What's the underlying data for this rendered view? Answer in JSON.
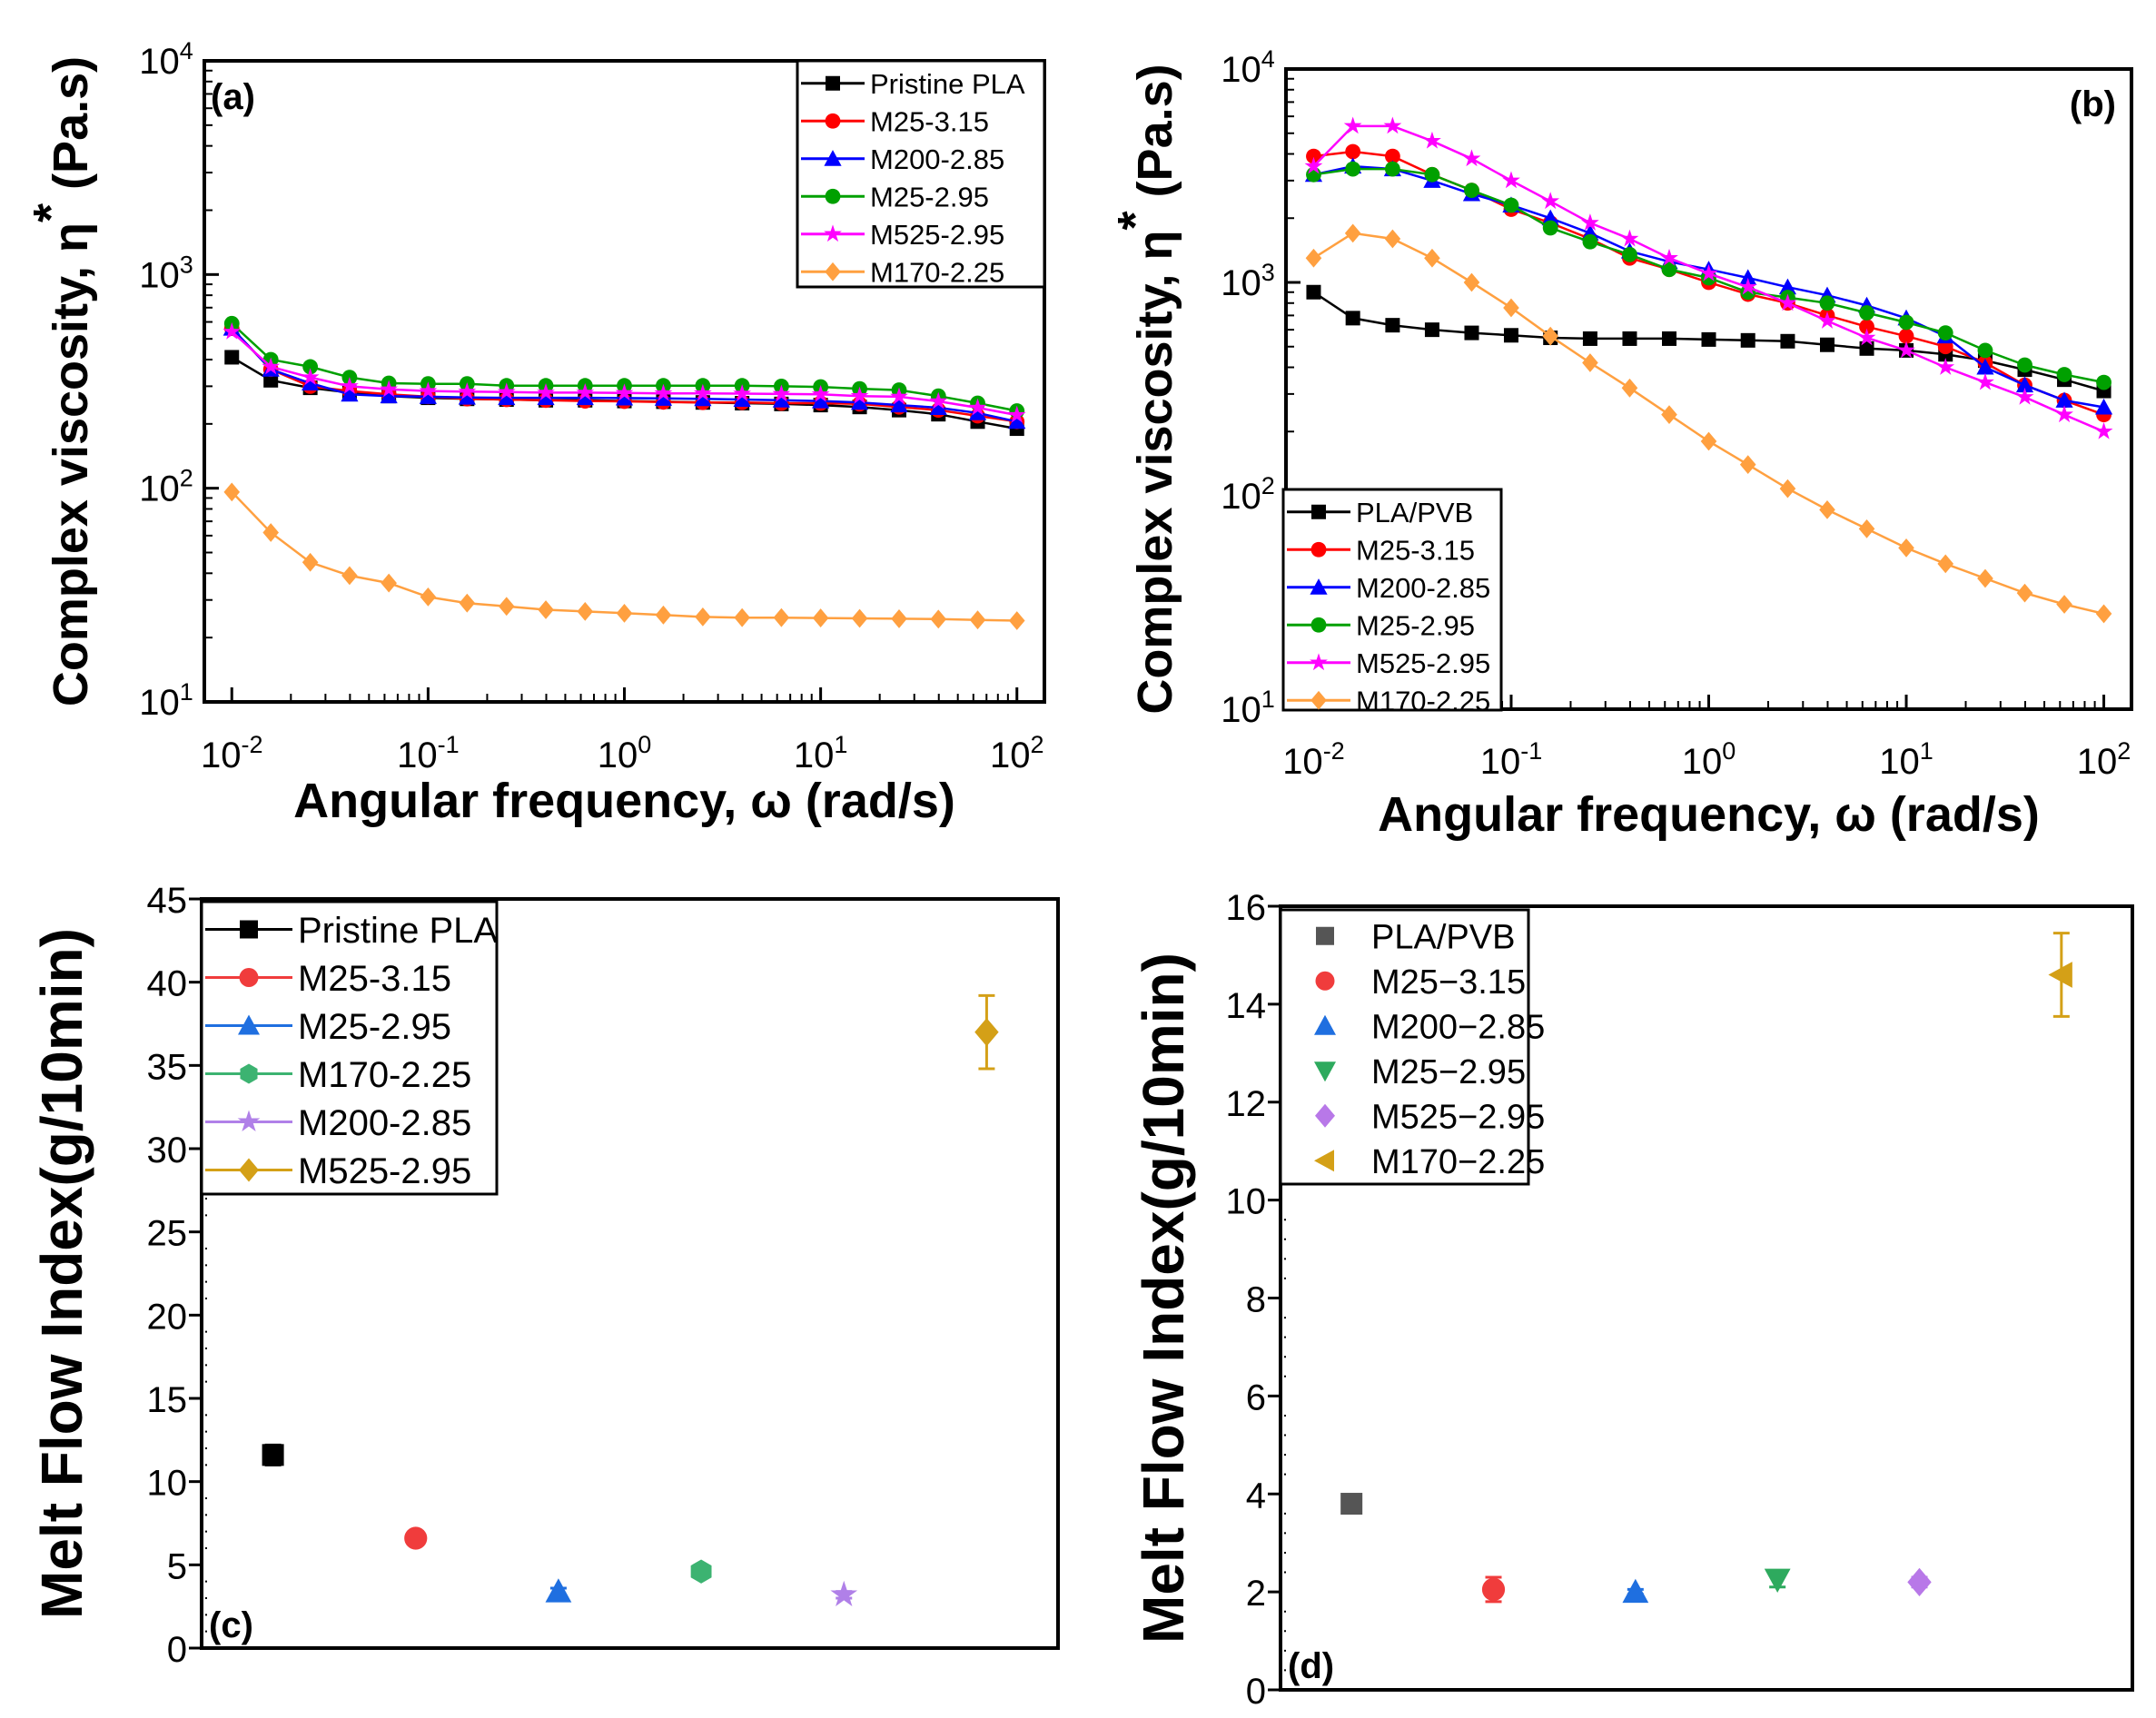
{
  "chart_data": [
    {
      "panel_label": "(a)",
      "type": "line",
      "xscale": "log",
      "yscale": "log",
      "xlabel": "Angular frequency, ω (rad/s)",
      "ylabel": "Complex viscosity, η* (Pa.s)",
      "xlim": [
        0.01,
        100
      ],
      "ylim": [
        10,
        10000
      ],
      "x_tick_exponents": [
        -2,
        -1,
        0,
        1,
        2
      ],
      "y_tick_exponents": [
        1,
        2,
        3,
        4
      ],
      "legend_position": "top-right",
      "x": [
        0.01,
        0.0158,
        0.0251,
        0.0398,
        0.0631,
        0.1,
        0.158,
        0.251,
        0.398,
        0.631,
        1,
        1.58,
        2.51,
        3.98,
        6.31,
        10,
        15.8,
        25.1,
        39.8,
        63.1,
        100
      ],
      "series": [
        {
          "name": "Pristine PLA",
          "color": "#000000",
          "marker": "square",
          "values": [
            410,
            320,
            295,
            280,
            270,
            265,
            262,
            260,
            258,
            258,
            256,
            254,
            252,
            250,
            248,
            245,
            240,
            232,
            222,
            205,
            190
          ]
        },
        {
          "name": "M25-3.15",
          "color": "#ff0000",
          "marker": "circle",
          "values": [
            560,
            360,
            300,
            285,
            275,
            268,
            262,
            260,
            258,
            256,
            255,
            253,
            252,
            252,
            250,
            250,
            248,
            240,
            232,
            218,
            205
          ]
        },
        {
          "name": "M200-2.85",
          "color": "#0000ff",
          "marker": "triangle-up",
          "values": [
            560,
            360,
            310,
            275,
            270,
            268,
            266,
            265,
            265,
            265,
            264,
            263,
            262,
            260,
            258,
            256,
            252,
            245,
            238,
            225,
            205
          ]
        },
        {
          "name": "M25-2.95",
          "color": "#00a000",
          "marker": "circle",
          "values": [
            590,
            400,
            370,
            330,
            310,
            308,
            308,
            302,
            302,
            302,
            302,
            302,
            302,
            302,
            300,
            298,
            292,
            288,
            270,
            250,
            230
          ]
        },
        {
          "name": "M525-2.95",
          "color": "#ff00ff",
          "marker": "star",
          "values": [
            540,
            370,
            330,
            300,
            290,
            285,
            283,
            282,
            280,
            280,
            279,
            278,
            278,
            277,
            276,
            275,
            270,
            268,
            255,
            238,
            220
          ]
        },
        {
          "name": "M170-2.25",
          "color": "#ffa040",
          "marker": "diamond",
          "values": [
            96,
            62,
            45,
            39,
            36,
            31,
            29,
            28,
            27,
            26.5,
            26,
            25.5,
            25,
            24.8,
            24.8,
            24.7,
            24.6,
            24.5,
            24.4,
            24.2,
            24
          ]
        }
      ]
    },
    {
      "panel_label": "(b)",
      "type": "line",
      "xscale": "log",
      "yscale": "log",
      "xlabel": "Angular frequency, ω (rad/s)",
      "ylabel": "Complex viscosity, η* (Pa.s)",
      "xlim": [
        0.01,
        100
      ],
      "ylim": [
        10,
        10000
      ],
      "x_tick_exponents": [
        -2,
        -1,
        0,
        1,
        2
      ],
      "y_tick_exponents": [
        1,
        2,
        3,
        4
      ],
      "legend_position": "bottom-left",
      "x": [
        0.01,
        0.0158,
        0.0251,
        0.0398,
        0.0631,
        0.1,
        0.158,
        0.251,
        0.398,
        0.631,
        1,
        1.58,
        2.51,
        3.98,
        6.31,
        10,
        15.8,
        25.1,
        39.8,
        63.1,
        100
      ],
      "series": [
        {
          "name": "PLA/PVB",
          "color": "#000000",
          "marker": "square",
          "values": [
            900,
            680,
            630,
            600,
            580,
            565,
            550,
            545,
            545,
            545,
            540,
            535,
            530,
            510,
            490,
            480,
            460,
            430,
            390,
            350,
            310
          ]
        },
        {
          "name": "M25-3.15",
          "color": "#ff0000",
          "marker": "circle",
          "values": [
            3900,
            4100,
            3900,
            3200,
            2700,
            2200,
            1900,
            1600,
            1300,
            1150,
            1000,
            880,
            800,
            700,
            620,
            560,
            500,
            420,
            330,
            280,
            240
          ]
        },
        {
          "name": "M200-2.85",
          "color": "#0000ff",
          "marker": "triangle-up",
          "values": [
            3200,
            3500,
            3400,
            3000,
            2600,
            2300,
            2000,
            1700,
            1400,
            1250,
            1150,
            1050,
            950,
            870,
            780,
            680,
            560,
            400,
            330,
            280,
            260
          ]
        },
        {
          "name": "M25-2.95",
          "color": "#00a000",
          "marker": "circle",
          "values": [
            3200,
            3400,
            3400,
            3200,
            2700,
            2300,
            1800,
            1550,
            1350,
            1150,
            1050,
            900,
            850,
            800,
            720,
            650,
            580,
            480,
            410,
            370,
            340
          ]
        },
        {
          "name": "M525-2.95",
          "color": "#ff00ff",
          "marker": "star",
          "values": [
            3500,
            5400,
            5400,
            4600,
            3800,
            3000,
            2400,
            1900,
            1600,
            1300,
            1100,
            950,
            800,
            660,
            550,
            480,
            400,
            340,
            290,
            240,
            200
          ]
        },
        {
          "name": "M170-2.25",
          "color": "#ffa040",
          "marker": "diamond",
          "values": [
            1300,
            1700,
            1600,
            1300,
            1000,
            760,
            560,
            420,
            320,
            240,
            180,
            140,
            108,
            86,
            70,
            57,
            48,
            41,
            35,
            31,
            28
          ]
        }
      ]
    },
    {
      "panel_label": "(c)",
      "type": "scatter",
      "ylabel": "Melt Flow Index(g/10min)",
      "ylim": [
        0,
        45
      ],
      "y_ticks": [
        0,
        5,
        10,
        15,
        20,
        25,
        30,
        35,
        40,
        45
      ],
      "legend_position": "top-left",
      "legend_lines": true,
      "series": [
        {
          "name": "Pristine PLA",
          "color": "#000000",
          "marker": "square",
          "value": 11.6,
          "error": 0.6
        },
        {
          "name": "M25-3.15",
          "color": "#f03c3c",
          "marker": "circle",
          "value": 6.6,
          "error": 0.3
        },
        {
          "name": "M25-2.95",
          "color": "#1f6fe0",
          "marker": "triangle-up",
          "value": 3.4,
          "error": 0.2
        },
        {
          "name": "M170-2.25",
          "color": "#3cb371",
          "marker": "hexagon",
          "value": 4.6,
          "error": 0.3
        },
        {
          "name": "M200-2.85",
          "color": "#b080e8",
          "marker": "star",
          "value": 3.2,
          "error": 0.2
        },
        {
          "name": "M525-2.95",
          "color": "#d4a017",
          "marker": "diamond",
          "value": 37.0,
          "error": 2.2
        }
      ]
    },
    {
      "panel_label": "(d)",
      "type": "scatter",
      "ylabel": "Melt Flow Index(g/10min)",
      "ylim": [
        0,
        16
      ],
      "y_ticks": [
        0,
        2,
        4,
        6,
        8,
        10,
        12,
        14,
        16
      ],
      "legend_position": "top-left",
      "legend_lines": false,
      "series": [
        {
          "name": "PLA/PVB",
          "color": "#555555",
          "marker": "square",
          "value": 3.8,
          "error": 0.1
        },
        {
          "name": "M25−3.15",
          "color": "#f03c3c",
          "marker": "circle",
          "value": 2.05,
          "error": 0.25
        },
        {
          "name": "M200−2.85",
          "color": "#1f6fe0",
          "marker": "triangle-up",
          "value": 2.0,
          "error": 0.05
        },
        {
          "name": "M25−2.95",
          "color": "#2eaa5e",
          "marker": "triangle-down",
          "value": 2.25,
          "error": 0.15
        },
        {
          "name": "M525−2.95",
          "color": "#b878e8",
          "marker": "diamond",
          "value": 2.2,
          "error": 0.1
        },
        {
          "name": "M170−2.25",
          "color": "#d4a017",
          "marker": "triangle-left",
          "value": 14.6,
          "error": 0.85
        }
      ]
    }
  ]
}
